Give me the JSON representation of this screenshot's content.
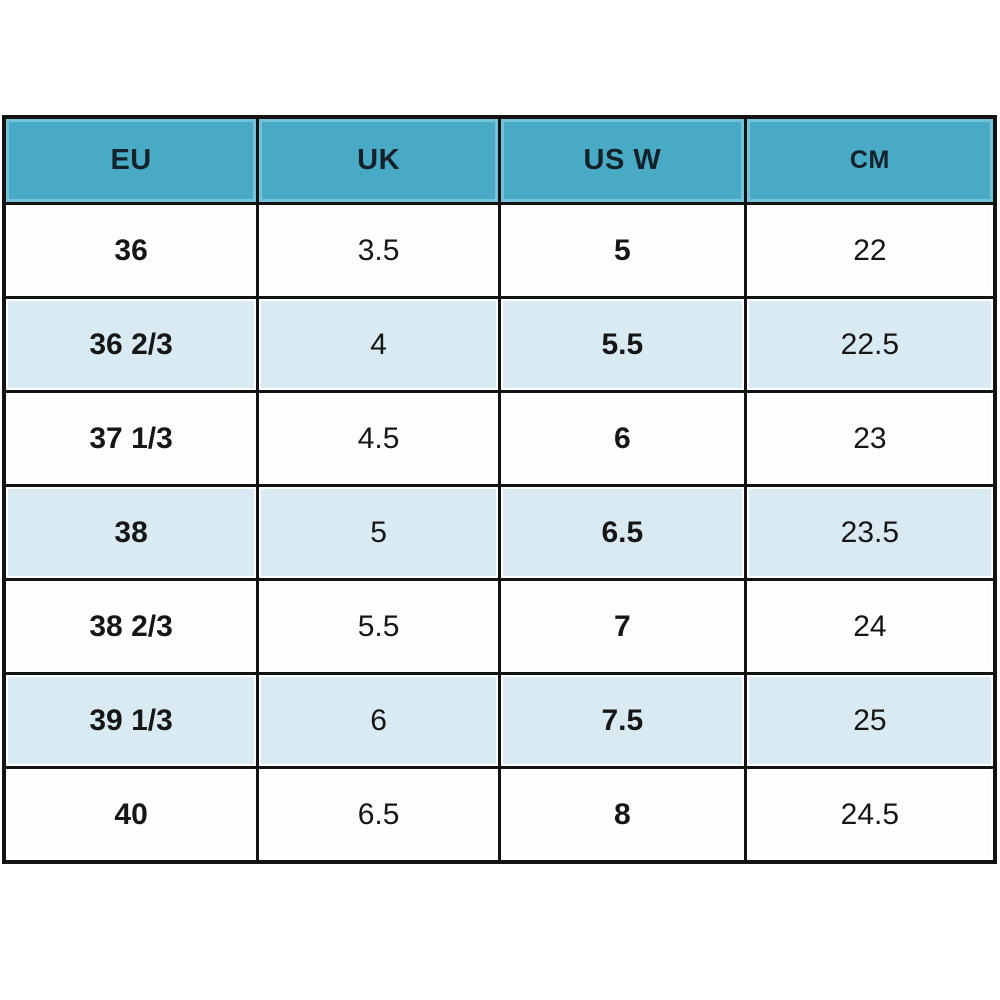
{
  "table": {
    "headers": [
      "EU",
      "UK",
      "US W",
      "CM"
    ],
    "rows": [
      {
        "cells": [
          "36",
          "3.5",
          "5",
          "22"
        ]
      },
      {
        "cells": [
          "36 2/3",
          "4",
          "5.5",
          "22.5"
        ]
      },
      {
        "cells": [
          "37 1/3",
          "4.5",
          "6",
          "23"
        ]
      },
      {
        "cells": [
          "38",
          "5",
          "6.5",
          "23.5"
        ]
      },
      {
        "cells": [
          "38 2/3",
          "5.5",
          "7",
          "24"
        ]
      },
      {
        "cells": [
          "39 1/3",
          "6",
          "7.5",
          "25"
        ]
      },
      {
        "cells": [
          "40",
          "6.5",
          "8",
          "24.5"
        ]
      }
    ]
  },
  "colors": {
    "header_bg": "#48aac5",
    "header_inset": "#74c3d8",
    "header_text": "#13222a",
    "row_even": "#fdfdfd",
    "row_odd": "#d9eaf2",
    "border": "#131313",
    "cell_text": "#161616"
  },
  "chart_data": {
    "type": "table",
    "title": "",
    "columns": [
      "EU",
      "UK",
      "US W",
      "CM"
    ],
    "rows": [
      [
        "36",
        "3.5",
        "5",
        "22"
      ],
      [
        "36 2/3",
        "4",
        "5.5",
        "22.5"
      ],
      [
        "37 1/3",
        "4.5",
        "6",
        "23"
      ],
      [
        "38",
        "5",
        "6.5",
        "23.5"
      ],
      [
        "38 2/3",
        "5.5",
        "7",
        "24"
      ],
      [
        "39 1/3",
        "6",
        "7.5",
        "25"
      ],
      [
        "40",
        "6.5",
        "8",
        "24.5"
      ]
    ],
    "layout_hints": {
      "header_fill": "#48aac5",
      "zebra_striping": true,
      "bold_columns": [
        "EU",
        "US W"
      ],
      "grid": true
    }
  }
}
